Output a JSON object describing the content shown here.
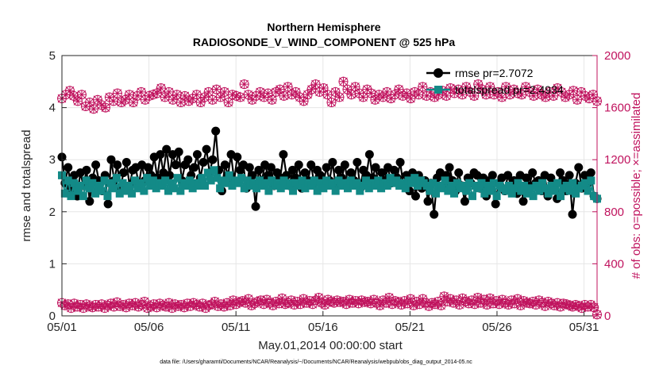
{
  "chart_data": {
    "type": "line",
    "title": "Northern Hemisphere",
    "subtitle": "RADIOSONDE_V_WIND_COMPONENT @ 525 hPa",
    "xlabel": "May.01,2014 00:00:00 start",
    "ylabel": "rmse and totalspread",
    "ylabel_right": "# of obs: o=possible; ×=assimilated",
    "footer": "data file: /Users/gharamti/Documents/NCAR/Reanalysis/~/Documents/NCAR/Reanalysis/webpub/obs_diag_output_2014-05.nc",
    "x_ticks": [
      "05/01",
      "05/06",
      "05/11",
      "05/16",
      "05/21",
      "05/26",
      "05/31"
    ],
    "x_tick_days": [
      1,
      6,
      11,
      16,
      21,
      26,
      31
    ],
    "xlim": [
      1,
      31.75
    ],
    "ylim": [
      0,
      5
    ],
    "y_ticks": [
      "0",
      "1",
      "2",
      "3",
      "4",
      "5"
    ],
    "ylim_right": [
      0,
      2000
    ],
    "y_ticks_right": [
      "0",
      "400",
      "800",
      "1200",
      "1600",
      "2000"
    ],
    "grid": true,
    "legend_position": "top-right",
    "colors": {
      "rmse": "#000000",
      "totalspread": "#138a87",
      "obs": "#c0135e"
    },
    "series": [
      {
        "name": "rmse",
        "legend": "rmse pr=2.7072",
        "axis": "left",
        "marker": "circle",
        "values": [
          3.05,
          2.55,
          2.85,
          2.45,
          2.7,
          2.3,
          2.75,
          2.5,
          2.8,
          2.2,
          2.65,
          2.9,
          2.6,
          2.4,
          2.7,
          2.15,
          3.0,
          2.6,
          2.9,
          2.45,
          2.75,
          2.95,
          2.5,
          2.8,
          2.85,
          2.5,
          2.9,
          2.6,
          2.85,
          2.7,
          3.05,
          2.65,
          3.1,
          2.75,
          3.2,
          2.7,
          3.1,
          2.9,
          3.15,
          2.6,
          2.9,
          3.0,
          2.7,
          2.85,
          3.1,
          2.65,
          2.95,
          3.2,
          2.75,
          3.0,
          3.55,
          2.8,
          2.4,
          2.9,
          2.7,
          3.1,
          2.6,
          3.05,
          2.8,
          2.9,
          2.45,
          2.85,
          2.7,
          2.1,
          2.8,
          2.6,
          2.9,
          2.7,
          2.85,
          2.5,
          2.75,
          2.65,
          3.1,
          2.7,
          2.5,
          2.8,
          2.65,
          2.9,
          2.45,
          2.75,
          2.6,
          2.9,
          2.55,
          2.8,
          2.7,
          2.55,
          2.85,
          2.6,
          2.95,
          2.5,
          2.8,
          2.65,
          2.9,
          2.55,
          2.75,
          2.6,
          2.95,
          2.45,
          2.8,
          2.7,
          3.1,
          2.65,
          2.85,
          2.5,
          2.75,
          2.6,
          2.85,
          2.55,
          2.8,
          2.65,
          2.95,
          2.5,
          2.7,
          2.4,
          2.75,
          2.3,
          2.7,
          2.45,
          2.6,
          2.2,
          2.55,
          1.95,
          2.65,
          2.75,
          2.5,
          2.7,
          2.85,
          2.6,
          2.4,
          2.75,
          2.5,
          2.2,
          2.65,
          2.55,
          2.75,
          2.7,
          2.45,
          2.65,
          2.3,
          2.6,
          2.7,
          2.15,
          2.55,
          2.65,
          2.4,
          2.7,
          2.5,
          2.6,
          2.35,
          2.7,
          2.2,
          2.65,
          2.5,
          2.75,
          2.55,
          2.6,
          2.4,
          2.7,
          2.3,
          2.65,
          2.5,
          2.25,
          2.75,
          2.6,
          2.4,
          2.7,
          1.95,
          2.55,
          2.85,
          2.45,
          2.7,
          2.55,
          2.75,
          2.3,
          2.25
        ]
      },
      {
        "name": "totalspread",
        "legend": "totalspread pr=2.4934",
        "axis": "left",
        "marker": "square",
        "values": [
          2.7,
          2.35,
          2.6,
          2.3,
          2.55,
          2.4,
          2.5,
          2.3,
          2.6,
          2.45,
          2.55,
          2.35,
          2.5,
          2.4,
          2.6,
          2.3,
          2.55,
          2.45,
          2.65,
          2.35,
          2.55,
          2.4,
          2.5,
          2.35,
          2.6,
          2.45,
          2.55,
          2.4,
          2.65,
          2.5,
          2.6,
          2.45,
          2.55,
          2.5,
          2.6,
          2.4,
          2.55,
          2.45,
          2.65,
          2.4,
          2.55,
          2.5,
          2.6,
          2.45,
          2.55,
          2.5,
          2.65,
          2.5,
          2.75,
          2.6,
          2.8,
          2.65,
          2.45,
          2.6,
          2.55,
          2.7,
          2.5,
          2.6,
          2.55,
          2.65,
          2.45,
          2.6,
          2.5,
          2.55,
          2.45,
          2.6,
          2.5,
          2.55,
          2.4,
          2.6,
          2.5,
          2.55,
          2.45,
          2.6,
          2.5,
          2.55,
          2.4,
          2.55,
          2.5,
          2.6,
          2.45,
          2.55,
          2.5,
          2.6,
          2.4,
          2.55,
          2.45,
          2.6,
          2.5,
          2.55,
          2.4,
          2.6,
          2.5,
          2.55,
          2.45,
          2.6,
          2.5,
          2.55,
          2.4,
          2.5,
          2.6,
          2.45,
          2.55,
          2.5,
          2.6,
          2.45,
          2.55,
          2.5,
          2.65,
          2.55,
          2.6,
          2.5,
          2.55,
          2.45,
          2.6,
          2.55,
          2.65,
          2.5,
          2.6,
          2.55,
          2.5,
          2.4,
          2.55,
          2.35,
          2.5,
          2.45,
          2.6,
          2.4,
          2.5,
          2.35,
          2.55,
          2.45,
          2.5,
          2.4,
          2.55,
          2.3,
          2.5,
          2.45,
          2.55,
          2.35,
          2.5,
          2.4,
          2.55,
          2.3,
          2.5,
          2.45,
          2.4,
          2.5,
          2.35,
          2.45,
          2.55,
          2.4,
          2.5,
          2.35,
          2.45,
          2.3,
          2.5,
          2.4,
          2.55,
          2.45,
          2.35,
          2.5,
          2.4,
          2.55,
          2.3,
          2.45,
          2.5,
          2.4,
          2.55,
          2.35,
          2.45,
          2.5,
          2.55,
          2.4,
          2.6,
          2.3,
          2.25
        ]
      },
      {
        "name": "obs_possible",
        "axis": "right",
        "marker": "circle-open",
        "values": [
          100,
          80,
          90,
          60,
          95,
          70,
          85,
          60,
          90,
          75,
          65,
          85,
          70,
          90,
          60,
          80,
          95,
          70,
          105,
          75,
          85,
          65,
          95,
          80,
          100,
          70,
          85,
          110,
          60,
          75,
          90,
          65,
          95,
          80,
          70,
          100,
          60,
          90,
          75,
          85,
          65,
          95,
          75,
          100,
          85,
          70,
          95,
          60,
          80,
          90,
          110,
          75,
          90,
          70,
          100,
          80,
          120,
          90,
          105,
          115,
          100,
          130,
          80,
          95,
          110,
          120,
          90,
          125,
          100,
          80,
          110,
          95,
          135,
          90,
          100,
          120,
          85,
          110,
          90,
          130,
          100,
          115,
          90,
          120,
          140,
          100,
          85,
          125,
          110,
          100,
          120,
          105,
          110,
          90,
          125,
          100,
          115,
          95,
          120,
          105,
          110,
          95,
          125,
          100,
          80,
          120,
          100,
          140,
          90,
          115,
          105,
          85,
          115,
          95,
          130,
          80,
          110,
          90,
          130,
          100,
          75,
          100,
          90,
          110,
          80,
          150,
          110,
          130,
          100,
          120,
          85,
          135,
          110,
          95,
          120,
          90,
          140,
          100,
          125,
          85,
          135,
          95,
          115,
          90,
          125,
          100,
          85,
          120,
          95,
          130,
          80,
          115,
          100,
          95,
          110,
          85,
          120,
          100,
          75,
          110,
          95,
          80,
          100,
          70,
          95,
          90,
          80,
          70,
          85,
          75,
          60,
          85,
          70,
          85,
          65,
          10
        ]
      },
      {
        "name": "obs_assimilated",
        "axis": "right",
        "marker": "x",
        "values": [
          100,
          80,
          90,
          60,
          95,
          70,
          85,
          60,
          90,
          75,
          65,
          85,
          70,
          90,
          60,
          80,
          95,
          70,
          105,
          75,
          85,
          65,
          95,
          80,
          100,
          70,
          85,
          110,
          60,
          75,
          90,
          65,
          95,
          80,
          70,
          100,
          60,
          90,
          75,
          85,
          65,
          95,
          75,
          100,
          85,
          70,
          95,
          60,
          80,
          90,
          110,
          75,
          90,
          70,
          100,
          80,
          120,
          90,
          105,
          115,
          100,
          130,
          80,
          95,
          110,
          120,
          90,
          125,
          100,
          80,
          110,
          95,
          135,
          90,
          100,
          120,
          85,
          110,
          90,
          130,
          100,
          115,
          90,
          120,
          140,
          100,
          85,
          125,
          110,
          100,
          120,
          105,
          110,
          90,
          125,
          100,
          115,
          95,
          120,
          105,
          110,
          95,
          125,
          100,
          80,
          120,
          100,
          140,
          90,
          115,
          105,
          85,
          115,
          95,
          130,
          80,
          110,
          90,
          130,
          100,
          75,
          100,
          90,
          110,
          80,
          150,
          110,
          130,
          100,
          120,
          85,
          135,
          110,
          95,
          120,
          90,
          140,
          100,
          125,
          85,
          135,
          95,
          115,
          90,
          125,
          100,
          85,
          120,
          95,
          130,
          80,
          115,
          100,
          95,
          110,
          85,
          120,
          100,
          75,
          110,
          95,
          80,
          100,
          70,
          95,
          90,
          80,
          70,
          85,
          75,
          60,
          85,
          70,
          85,
          65,
          10
        ]
      },
      {
        "name": "obs_top_possible",
        "axis": "right",
        "marker": "circle-open",
        "values": [
          1670,
          1700,
          1730,
          1690,
          1650,
          1700,
          1610,
          1640,
          1590,
          1660,
          1620,
          1600,
          1680,
          1650,
          1710,
          1640,
          1660,
          1700,
          1640,
          1690,
          1720,
          1660,
          1690,
          1700,
          1710,
          1750,
          1680,
          1720,
          1660,
          1700,
          1640,
          1690,
          1650,
          1670,
          1700,
          1640,
          1680,
          1720,
          1660,
          1740,
          1680,
          1720,
          1640,
          1700,
          1690,
          1680,
          1780,
          1700,
          1660,
          1690,
          1720,
          1680,
          1710,
          1660,
          1720,
          1740,
          1690,
          1760,
          1700,
          1720,
          1680,
          1650,
          1700,
          1740,
          1780,
          1720,
          1750,
          1700,
          1640,
          1720,
          1680,
          1800,
          1740,
          1700,
          1760,
          1710,
          1680,
          1740,
          1710,
          1660,
          1700,
          1680,
          1720,
          1670,
          1700,
          1740,
          1690,
          1710,
          1670,
          1720,
          1700,
          1760,
          1690,
          1720,
          1680,
          1700,
          1730,
          1690,
          1750,
          1710,
          1740,
          1700,
          1760,
          1720,
          1690,
          1780,
          1740,
          1700,
          1760,
          1700,
          1720,
          1680,
          1760,
          1700,
          1740,
          1710,
          1700,
          1760,
          1720,
          1690,
          1740,
          1700,
          1680,
          1720,
          1690,
          1750,
          1720,
          1680,
          1700,
          1730,
          1660,
          1720,
          1690,
          1670,
          1700,
          1650
        ]
      },
      {
        "name": "obs_top_assimilated",
        "axis": "right",
        "marker": "x",
        "values": [
          1670,
          1700,
          1730,
          1690,
          1650,
          1700,
          1610,
          1640,
          1590,
          1660,
          1620,
          1600,
          1680,
          1650,
          1710,
          1640,
          1660,
          1700,
          1640,
          1690,
          1720,
          1660,
          1690,
          1700,
          1710,
          1750,
          1680,
          1720,
          1660,
          1700,
          1640,
          1690,
          1650,
          1670,
          1700,
          1640,
          1680,
          1720,
          1660,
          1740,
          1680,
          1720,
          1640,
          1700,
          1690,
          1680,
          1780,
          1700,
          1660,
          1690,
          1720,
          1680,
          1710,
          1660,
          1720,
          1740,
          1690,
          1760,
          1700,
          1720,
          1680,
          1650,
          1700,
          1740,
          1780,
          1720,
          1750,
          1700,
          1640,
          1720,
          1680,
          1800,
          1740,
          1700,
          1760,
          1710,
          1680,
          1740,
          1710,
          1660,
          1700,
          1680,
          1720,
          1670,
          1700,
          1740,
          1690,
          1710,
          1670,
          1720,
          1700,
          1760,
          1690,
          1720,
          1680,
          1700,
          1730,
          1690,
          1750,
          1710,
          1740,
          1700,
          1760,
          1720,
          1690,
          1780,
          1740,
          1700,
          1760,
          1700,
          1720,
          1680,
          1760,
          1700,
          1740,
          1710,
          1700,
          1760,
          1720,
          1690,
          1740,
          1700,
          1680,
          1720,
          1690,
          1750,
          1720,
          1680,
          1700,
          1730,
          1660,
          1720,
          1690,
          1670,
          1700,
          1650
        ]
      }
    ]
  }
}
